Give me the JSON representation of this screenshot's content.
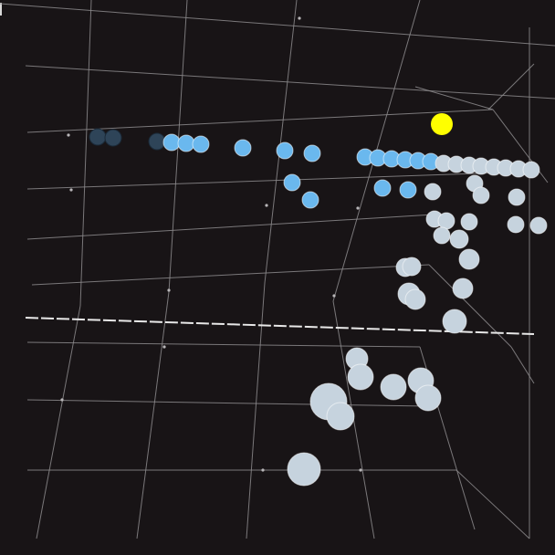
{
  "scene": {
    "background": "#181416",
    "grid_color": "#8c8a8c",
    "plane_line_color": "#e8e8e8",
    "highlight_color": "#ffff00",
    "colors": {
      "dark": "#2e4458",
      "blue": "#6ab8ee",
      "light": "#c6d3de"
    }
  }
}
